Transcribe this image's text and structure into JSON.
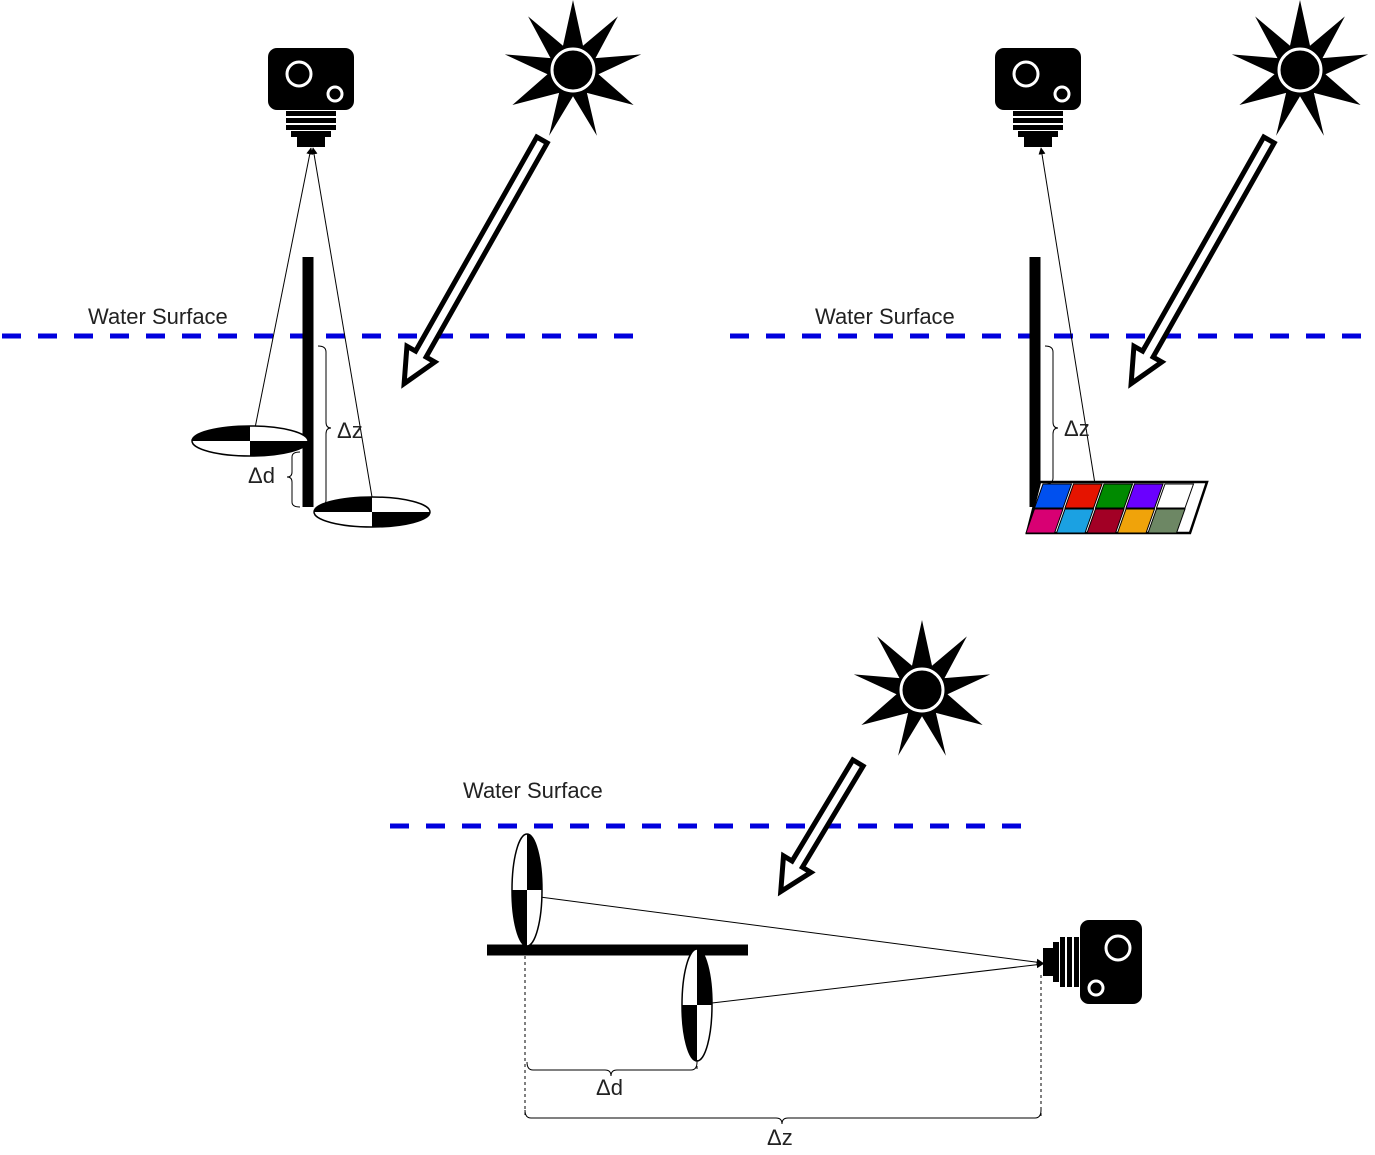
{
  "panels": {
    "top_left": {
      "water_label": "Water Surface",
      "dz_label": "Δz",
      "dd_label": "Δd"
    },
    "top_right": {
      "water_label": "Water Surface",
      "dz_label": "Δz"
    },
    "bottom": {
      "water_label": "Water Surface",
      "dd_label": "Δd",
      "dz_label": "Δz"
    }
  },
  "colors": {
    "water_line": "#0000dd",
    "ink": "#000000",
    "chart_patches_top": [
      "#0050ef",
      "#e51400",
      "#008a00",
      "#6a00ff",
      "#ffffff"
    ],
    "chart_patches_bottom": [
      "#d80073",
      "#1ba1e2",
      "#a20025",
      "#f0a30a",
      "#6d8764"
    ]
  },
  "icons": [
    "camera-icon",
    "sun-icon",
    "light-arrow-icon",
    "checkerboard-target-icon",
    "color-chart-icon"
  ]
}
